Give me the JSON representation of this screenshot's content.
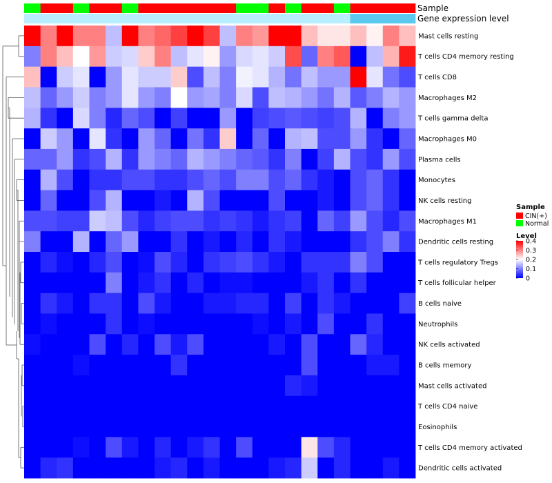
{
  "chart_data": {
    "type": "heatmap",
    "title": "",
    "annotation_tracks": [
      {
        "name": "Sample",
        "values": [
          "Normal",
          "CIN(+)",
          "CIN(+)",
          "Normal",
          "CIN(+)",
          "CIN(+)",
          "Normal",
          "CIN(+)",
          "CIN(+)",
          "CIN(+)",
          "CIN(+)",
          "CIN(+)",
          "CIN(+)",
          "Normal",
          "Normal",
          "CIN(+)",
          "Normal",
          "CIN(+)",
          "CIN(+)",
          "Normal",
          "CIN(+)",
          "CIN(+)",
          "CIN(+)",
          "CIN(+)"
        ]
      },
      {
        "name": "Gene expression level",
        "values": [
          "low",
          "low",
          "low",
          "low",
          "low",
          "low",
          "low",
          "low",
          "low",
          "low",
          "low",
          "low",
          "low",
          "low",
          "low",
          "low",
          "low",
          "low",
          "low",
          "low",
          "high",
          "high",
          "high",
          "high"
        ]
      }
    ],
    "rows": [
      "Mast cells resting",
      "T cells CD4 memory resting",
      "T cells CD8",
      "Macrophages M2",
      "T cells gamma delta",
      "Macrophages M0",
      "Plasma cells",
      "Monocytes",
      "NK cells resting",
      "Macrophages M1",
      "Dendritic cells resting",
      "T cells regulatory  Tregs",
      "T cells follicular helper",
      "B cells naive",
      "Neutrophils",
      "NK cells activated",
      "B cells memory",
      "Mast cells activated",
      "T cells CD4 naive",
      "Eosinophils",
      "T cells CD4 memory activated",
      "Dendritic cells activated"
    ],
    "values": [
      [
        0.4,
        0.3,
        0.4,
        0.3,
        0.3,
        0.15,
        0.4,
        0.3,
        0.32,
        0.35,
        0.4,
        0.35,
        0.15,
        0.3,
        0.28,
        0.4,
        0.4,
        0.25,
        0.22,
        0.22,
        0.25,
        0.21,
        0.3,
        0.25
      ],
      [
        0.1,
        0.3,
        0.25,
        0.2,
        0.28,
        0.16,
        0.17,
        0.24,
        0.3,
        0.15,
        0.18,
        0.21,
        0.12,
        0.17,
        0.18,
        0.16,
        0.34,
        0.08,
        0.3,
        0.33,
        0.0,
        0.15,
        0.26,
        0.38
      ],
      [
        0.25,
        0.0,
        0.16,
        0.18,
        0.0,
        0.12,
        0.18,
        0.16,
        0.16,
        0.24,
        0.06,
        0.15,
        0.1,
        0.19,
        0.18,
        0.14,
        0.09,
        0.15,
        0.12,
        0.12,
        0.4,
        0.18,
        0.09,
        0.06
      ],
      [
        0.15,
        0.08,
        0.12,
        0.16,
        0.1,
        0.12,
        0.18,
        0.12,
        0.1,
        0.2,
        0.12,
        0.13,
        0.1,
        0.17,
        0.06,
        0.15,
        0.14,
        0.12,
        0.09,
        0.14,
        0.07,
        0.1,
        0.14,
        0.12
      ],
      [
        0.14,
        0.04,
        0.0,
        0.17,
        0.1,
        0.03,
        0.08,
        0.06,
        0.0,
        0.05,
        0.0,
        0.0,
        0.12,
        0.0,
        0.05,
        0.06,
        0.07,
        0.06,
        0.05,
        0.06,
        0.14,
        0.0,
        0.1,
        0.12
      ],
      [
        0.0,
        0.16,
        0.12,
        0.0,
        0.18,
        0.04,
        0.0,
        0.12,
        0.08,
        0.0,
        0.09,
        0.04,
        0.24,
        0.0,
        0.08,
        0.0,
        0.14,
        0.15,
        0.06,
        0.06,
        0.12,
        0.04,
        0.0,
        0.08
      ],
      [
        0.08,
        0.08,
        0.12,
        0.04,
        0.06,
        0.14,
        0.04,
        0.12,
        0.1,
        0.08,
        0.14,
        0.12,
        0.1,
        0.08,
        0.07,
        0.04,
        0.1,
        0.0,
        0.05,
        0.14,
        0.06,
        0.04,
        0.12,
        0.06
      ],
      [
        0.0,
        0.14,
        0.06,
        0.0,
        0.04,
        0.04,
        0.06,
        0.06,
        0.04,
        0.04,
        0.06,
        0.08,
        0.06,
        0.1,
        0.1,
        0.06,
        0.08,
        0.04,
        0.02,
        0.0,
        0.06,
        0.08,
        0.04,
        0.0
      ],
      [
        0.0,
        0.08,
        0.0,
        0.0,
        0.06,
        0.14,
        0.0,
        0.0,
        0.02,
        0.0,
        0.14,
        0.06,
        0.0,
        0.0,
        0.0,
        0.06,
        0.0,
        0.0,
        0.02,
        0.0,
        0.06,
        0.08,
        0.04,
        0.0
      ],
      [
        0.06,
        0.06,
        0.05,
        0.05,
        0.16,
        0.15,
        0.06,
        0.03,
        0.05,
        0.06,
        0.06,
        0.04,
        0.05,
        0.04,
        0.02,
        0.04,
        0.05,
        0.0,
        0.08,
        0.05,
        0.12,
        0.06,
        0.03,
        0.06
      ],
      [
        0.1,
        0.0,
        0.0,
        0.14,
        0.0,
        0.08,
        0.12,
        0.0,
        0.0,
        0.04,
        0.0,
        0.02,
        0.0,
        0.03,
        0.0,
        0.04,
        0.02,
        0.0,
        0.0,
        0.0,
        0.04,
        0.06,
        0.1,
        0.04
      ],
      [
        0.0,
        0.03,
        0.01,
        0.0,
        0.03,
        0.06,
        0.0,
        0.01,
        0.06,
        0.03,
        0.0,
        0.04,
        0.05,
        0.06,
        0.04,
        0.02,
        0.0,
        0.04,
        0.04,
        0.04,
        0.1,
        0.06,
        0.0,
        0.0
      ],
      [
        0.0,
        0.0,
        0.0,
        0.0,
        0.0,
        0.1,
        0.0,
        0.02,
        0.04,
        0.0,
        0.03,
        0.0,
        0.01,
        0.01,
        0.0,
        0.0,
        0.0,
        0.02,
        0.04,
        0.0,
        0.04,
        0.0,
        0.0,
        0.0
      ],
      [
        0.0,
        0.04,
        0.02,
        0.0,
        0.04,
        0.04,
        0.0,
        0.06,
        0.02,
        0.0,
        0.0,
        0.02,
        0.02,
        0.03,
        0.03,
        0.0,
        0.05,
        0.0,
        0.04,
        0.02,
        0.0,
        0.0,
        0.0,
        0.05
      ],
      [
        0.0,
        0.01,
        0.0,
        0.0,
        0.0,
        0.04,
        0.0,
        0.01,
        0.0,
        0.0,
        0.0,
        0.0,
        0.0,
        0.0,
        0.01,
        0.0,
        0.02,
        0.0,
        0.06,
        0.0,
        0.0,
        0.04,
        0.0,
        0.0
      ],
      [
        0.01,
        0.0,
        0.0,
        0.0,
        0.06,
        0.0,
        0.03,
        0.0,
        0.06,
        0.02,
        0.06,
        0.0,
        0.0,
        0.0,
        0.0,
        0.02,
        0.0,
        0.06,
        0.0,
        0.0,
        0.08,
        0.03,
        0.0,
        0.0
      ],
      [
        0.0,
        0.0,
        0.0,
        0.01,
        0.0,
        0.0,
        0.0,
        0.0,
        0.0,
        0.04,
        0.0,
        0.0,
        0.0,
        0.0,
        0.0,
        0.0,
        0.0,
        0.06,
        0.0,
        0.0,
        0.0,
        0.02,
        0.02,
        0.0
      ],
      [
        0.0,
        0.0,
        0.0,
        0.0,
        0.0,
        0.0,
        0.0,
        0.0,
        0.0,
        0.0,
        0.0,
        0.0,
        0.0,
        0.0,
        0.0,
        0.0,
        0.03,
        0.02,
        0.0,
        0.0,
        0.0,
        0.0,
        0.0,
        0.0
      ],
      [
        0.0,
        0.0,
        0.0,
        0.0,
        0.0,
        0.0,
        0.0,
        0.0,
        0.0,
        0.0,
        0.0,
        0.0,
        0.0,
        0.0,
        0.0,
        0.0,
        0.0,
        0.0,
        0.0,
        0.0,
        0.0,
        0.0,
        0.0,
        0.0
      ],
      [
        0.0,
        0.0,
        0.0,
        0.0,
        0.0,
        0.0,
        0.0,
        0.0,
        0.0,
        0.0,
        0.0,
        0.0,
        0.0,
        0.0,
        0.0,
        0.0,
        0.0,
        0.0,
        0.0,
        0.0,
        0.0,
        0.0,
        0.0,
        0.0
      ],
      [
        0.0,
        0.0,
        0.0,
        0.01,
        0.0,
        0.06,
        0.02,
        0.0,
        0.03,
        0.0,
        0.02,
        0.04,
        0.0,
        0.06,
        0.0,
        0.0,
        0.0,
        0.22,
        0.06,
        0.03,
        0.0,
        0.0,
        0.0,
        0.0
      ],
      [
        0.0,
        0.03,
        0.04,
        0.0,
        0.0,
        0.0,
        0.0,
        0.0,
        0.02,
        0.03,
        0.0,
        0.02,
        0.0,
        0.0,
        0.0,
        0.02,
        0.03,
        0.16,
        0.0,
        0.03,
        0.0,
        0.0,
        0.02,
        0.0
      ]
    ],
    "color_scale": {
      "min": 0,
      "max": 0.4,
      "low": "#0000ff",
      "mid": "#ffffff",
      "high": "#ff0000"
    },
    "legend": {
      "sample": {
        "title": "Sample",
        "items": [
          {
            "label": "CIN(+)",
            "color": "#ff0000"
          },
          {
            "label": "Normal",
            "color": "#00ff00"
          }
        ]
      },
      "level": {
        "title": "Level",
        "ticks": [
          "0.4",
          "0.3",
          "0.2",
          "0.1",
          "0"
        ]
      }
    },
    "expr_colors": {
      "low": "#b8eeff",
      "high": "#5bc8ef"
    }
  }
}
